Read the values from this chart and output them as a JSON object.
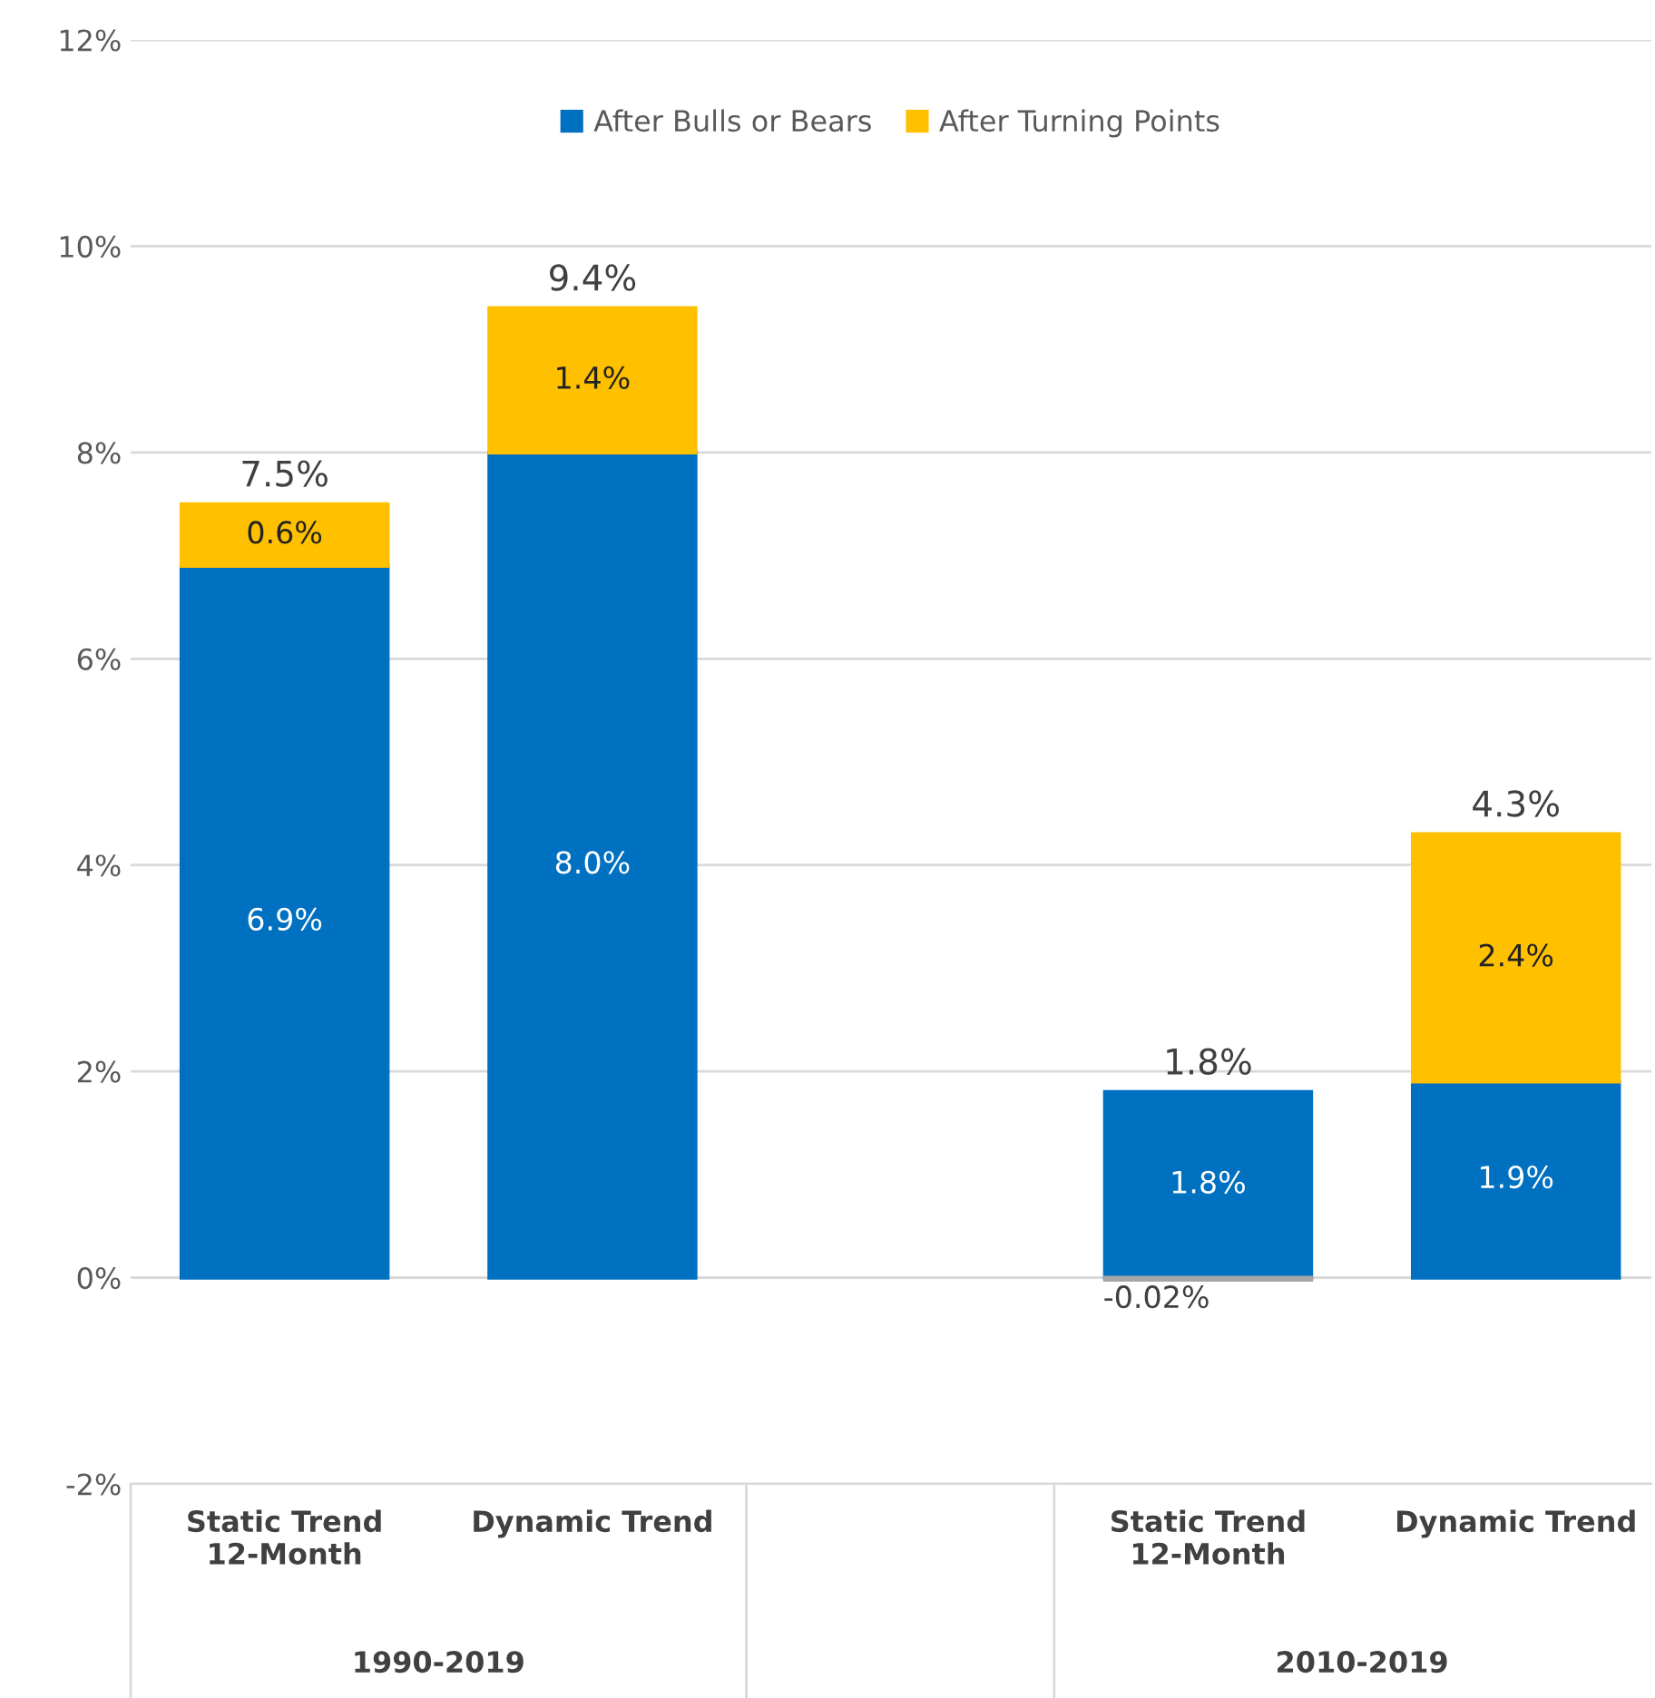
{
  "chart_data": {
    "type": "bar",
    "stacked": true,
    "categories": [
      "Static Trend\n12-Month",
      "Dynamic Trend",
      null,
      "Static Trend\n12-Month",
      "Dynamic Trend"
    ],
    "series": [
      {
        "name": "After Bulls or Bears",
        "color": "#0070c0",
        "values": [
          6.9,
          8.0,
          null,
          1.8,
          1.9
        ],
        "value_labels": [
          "6.9%",
          "8.0%",
          null,
          "1.8%",
          "1.9%"
        ]
      },
      {
        "name": "After Turning Points",
        "color": "#ffc000",
        "colors": [
          "#ffc000",
          "#ffc000",
          "#ffc000",
          "#a5a5a5",
          "#ffc000"
        ],
        "values": [
          0.6,
          1.4,
          null,
          -0.02,
          2.4
        ],
        "value_labels": [
          "0.6%",
          "1.4%",
          null,
          "-0.02%",
          "2.4%"
        ]
      }
    ],
    "totals": [
      "7.5%",
      "9.4%",
      null,
      "1.8%",
      "4.3%"
    ],
    "annotations": [
      "1990-2019",
      "2010-2019"
    ],
    "ylim": [
      -2,
      12
    ],
    "yticks": [
      {
        "value": -2,
        "label": "-2%"
      },
      {
        "value": 0,
        "label": "0%"
      },
      {
        "value": 2,
        "label": "2%"
      },
      {
        "value": 4,
        "label": "4%"
      },
      {
        "value": 6,
        "label": "6%"
      },
      {
        "value": 8,
        "label": "8%"
      },
      {
        "value": 10,
        "label": "10%"
      },
      {
        "value": 12,
        "label": "12%"
      }
    ],
    "grid": "y",
    "legend": "top"
  }
}
